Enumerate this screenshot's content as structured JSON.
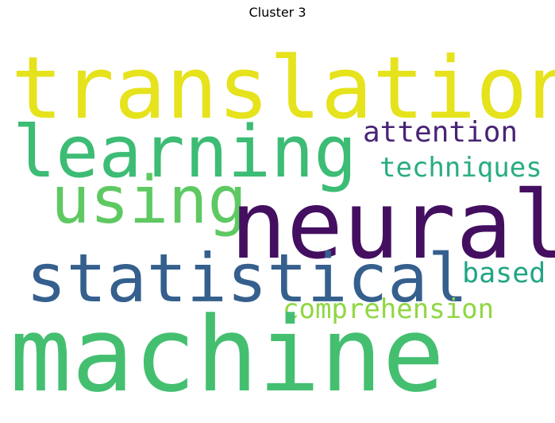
{
  "title": "Cluster 3",
  "words": [
    {
      "text": "translation",
      "color": "#e6e21c"
    },
    {
      "text": "learning",
      "color": "#3cbc74"
    },
    {
      "text": "attention",
      "color": "#482475"
    },
    {
      "text": "techniques",
      "color": "#27ad81"
    },
    {
      "text": "using",
      "color": "#5ec962"
    },
    {
      "text": "neural",
      "color": "#440f60"
    },
    {
      "text": "statistical",
      "color": "#355f8d"
    },
    {
      "text": "based",
      "color": "#21a585"
    },
    {
      "text": "comprehension",
      "color": "#90d743"
    },
    {
      "text": "machine",
      "color": "#44bf70"
    }
  ]
}
